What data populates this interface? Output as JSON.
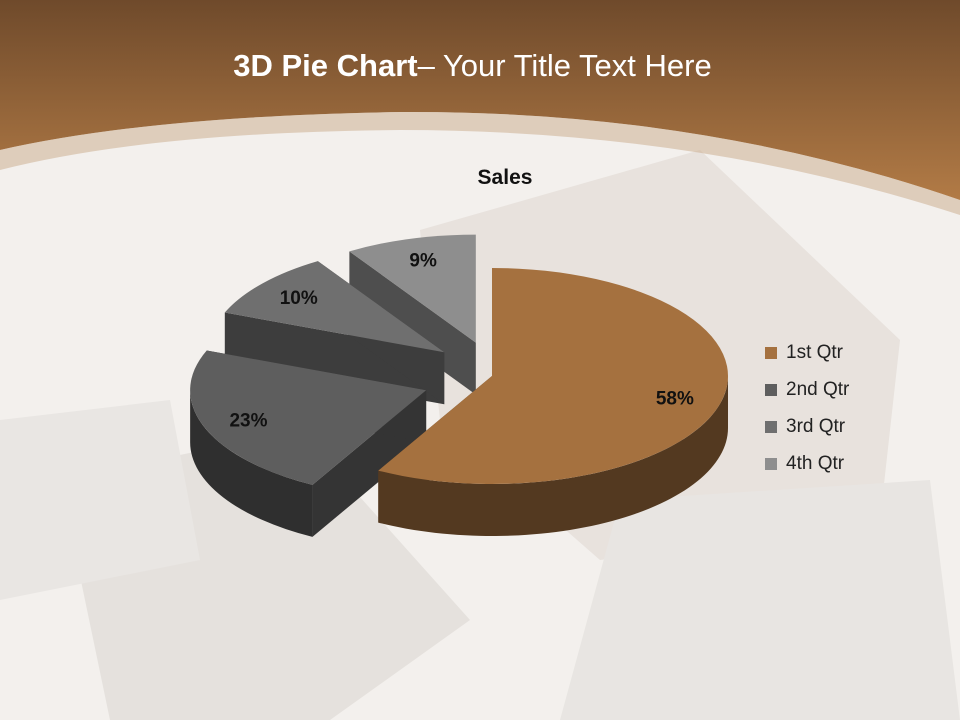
{
  "slide": {
    "title_bold": "3D Pie Chart",
    "title_rest": "– Your Title Text Here"
  },
  "colors": {
    "header": "#9a6636",
    "accent": "#a5713f"
  },
  "chart_data": {
    "type": "pie",
    "style": "3d-exploded",
    "title": "Sales",
    "categories": [
      "1st Qtr",
      "2nd Qtr",
      "3rd Qtr",
      "4th Qtr"
    ],
    "values": [
      58,
      23,
      10,
      9
    ],
    "labels": [
      "58%",
      "23%",
      "10%",
      "9%"
    ],
    "colors": [
      "#a5713f",
      "#5e5e5e",
      "#6f6f6f",
      "#8e8e8e"
    ],
    "legend": "right"
  }
}
